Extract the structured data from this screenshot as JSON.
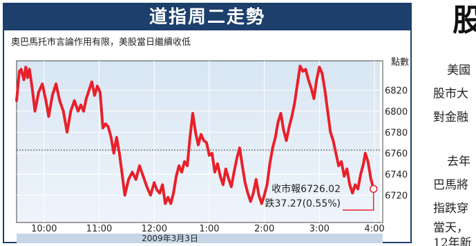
{
  "chart_title": "道指周二走勢",
  "chart_subtitle": "奧巴馬托市言論作用有限，美股當日繼續收低",
  "chart_data": {
    "type": "line",
    "title": "道指周二走勢",
    "subtitle": "奧巴馬托市言論作用有限，美股當日繼續收低",
    "ylabel": "點數",
    "y_ticks": [
      6720,
      6740,
      6760,
      6780,
      6800,
      6820
    ],
    "ylim": [
      6694,
      6848
    ],
    "x_tick_labels": [
      "10:00",
      "11:00",
      "12:00",
      "1:00",
      "2:00",
      "3:00",
      "4:00"
    ],
    "x_tick_minutes": [
      30,
      90,
      150,
      210,
      270,
      330,
      390
    ],
    "xlim": [
      0,
      396
    ],
    "date_label": "2009年3月3日",
    "reference_line": 6763,
    "close_label": "收市報6726.02",
    "change_label": "跌37.27(0.55%)",
    "close_value": 6726.02,
    "series": [
      {
        "color": "#e8202a",
        "points": [
          [
            0,
            6810
          ],
          [
            3,
            6838
          ],
          [
            5,
            6840
          ],
          [
            8,
            6830
          ],
          [
            10,
            6842
          ],
          [
            12,
            6832
          ],
          [
            14,
            6840
          ],
          [
            17,
            6822
          ],
          [
            20,
            6800
          ],
          [
            24,
            6818
          ],
          [
            28,
            6826
          ],
          [
            32,
            6810
          ],
          [
            35,
            6795
          ],
          [
            39,
            6815
          ],
          [
            43,
            6826
          ],
          [
            47,
            6810
          ],
          [
            51,
            6800
          ],
          [
            55,
            6780
          ],
          [
            59,
            6800
          ],
          [
            63,
            6810
          ],
          [
            67,
            6800
          ],
          [
            70,
            6806
          ],
          [
            73,
            6800
          ],
          [
            76,
            6812
          ],
          [
            79,
            6820
          ],
          [
            82,
            6828
          ],
          [
            85,
            6815
          ],
          [
            88,
            6824
          ],
          [
            91,
            6818
          ],
          [
            94,
            6784
          ],
          [
            97,
            6788
          ],
          [
            100,
            6785
          ],
          [
            103,
            6775
          ],
          [
            106,
            6760
          ],
          [
            109,
            6775
          ],
          [
            112,
            6760
          ],
          [
            115,
            6740
          ],
          [
            118,
            6720
          ],
          [
            122,
            6735
          ],
          [
            126,
            6742
          ],
          [
            130,
            6735
          ],
          [
            134,
            6748
          ],
          [
            138,
            6738
          ],
          [
            142,
            6728
          ],
          [
            146,
            6720
          ],
          [
            150,
            6732
          ],
          [
            153,
            6725
          ],
          [
            156,
            6722
          ],
          [
            159,
            6730
          ],
          [
            162,
            6712
          ],
          [
            165,
            6718
          ],
          [
            168,
            6712
          ],
          [
            171,
            6722
          ],
          [
            174,
            6738
          ],
          [
            177,
            6748
          ],
          [
            180,
            6742
          ],
          [
            183,
            6752
          ],
          [
            186,
            6748
          ],
          [
            189,
            6775
          ],
          [
            192,
            6798
          ],
          [
            195,
            6780
          ],
          [
            198,
            6768
          ],
          [
            201,
            6778
          ],
          [
            204,
            6772
          ],
          [
            207,
            6770
          ],
          [
            210,
            6758
          ],
          [
            213,
            6760
          ],
          [
            216,
            6742
          ],
          [
            219,
            6750
          ],
          [
            222,
            6738
          ],
          [
            225,
            6730
          ],
          [
            228,
            6745
          ],
          [
            231,
            6736
          ],
          [
            234,
            6728
          ],
          [
            237,
            6742
          ],
          [
            240,
            6755
          ],
          [
            243,
            6765
          ],
          [
            246,
            6748
          ],
          [
            249,
            6732
          ],
          [
            252,
            6722
          ],
          [
            255,
            6714
          ],
          [
            258,
            6722
          ],
          [
            261,
            6735
          ],
          [
            264,
            6720
          ],
          [
            267,
            6712
          ],
          [
            270,
            6720
          ],
          [
            273,
            6730
          ],
          [
            276,
            6750
          ],
          [
            279,
            6765
          ],
          [
            282,
            6775
          ],
          [
            285,
            6790
          ],
          [
            288,
            6798
          ],
          [
            291,
            6782
          ],
          [
            294,
            6772
          ],
          [
            297,
            6785
          ],
          [
            300,
            6795
          ],
          [
            303,
            6808
          ],
          [
            306,
            6826
          ],
          [
            309,
            6843
          ],
          [
            312,
            6838
          ],
          [
            315,
            6840
          ],
          [
            318,
            6830
          ],
          [
            321,
            6822
          ],
          [
            324,
            6812
          ],
          [
            327,
            6830
          ],
          [
            330,
            6842
          ],
          [
            333,
            6836
          ],
          [
            336,
            6820
          ],
          [
            339,
            6800
          ],
          [
            342,
            6780
          ],
          [
            345,
            6772
          ],
          [
            348,
            6760
          ],
          [
            351,
            6748
          ],
          [
            354,
            6752
          ],
          [
            357,
            6738
          ],
          [
            360,
            6745
          ],
          [
            363,
            6730
          ],
          [
            366,
            6722
          ],
          [
            369,
            6730
          ],
          [
            372,
            6726
          ],
          [
            375,
            6740
          ],
          [
            378,
            6750
          ],
          [
            380,
            6760
          ],
          [
            383,
            6752
          ],
          [
            386,
            6736
          ],
          [
            389,
            6726.02
          ]
        ]
      }
    ]
  },
  "side_article": {
    "headline_char": "股",
    "lines": [
      "美國",
      "股市大",
      "對金融",
      "去年",
      "巴馬將",
      "指跌穿",
      "當天，",
      "12年新"
    ]
  }
}
